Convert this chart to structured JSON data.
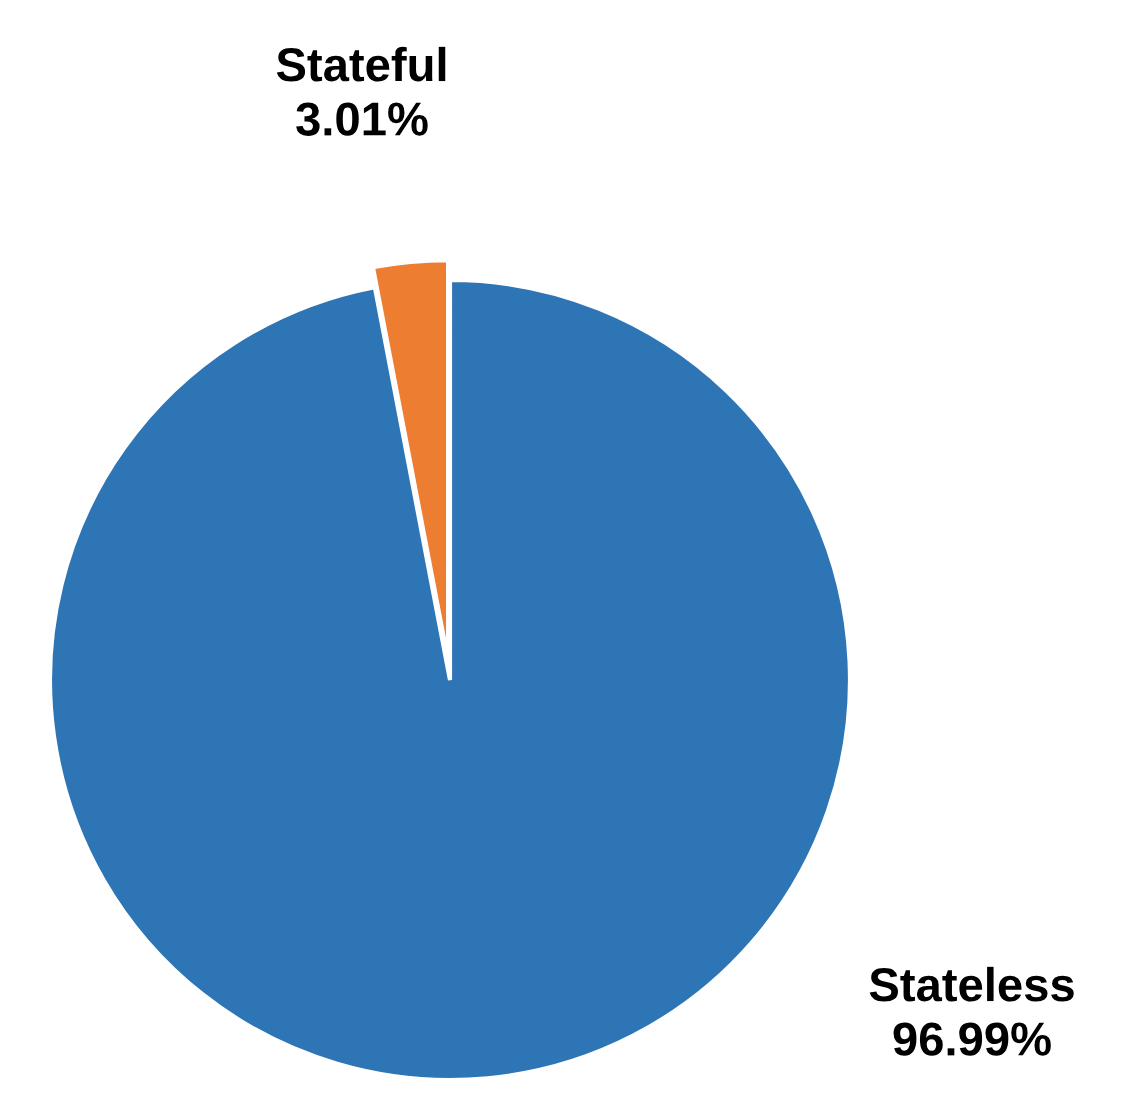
{
  "chart_data": {
    "type": "pie",
    "categories": [
      "Stateful",
      "Stateless"
    ],
    "values": [
      3.01,
      96.99
    ],
    "colors": [
      "#ed7d31",
      "#2e75b6"
    ],
    "value_labels": [
      "3.01%",
      "96.99%"
    ]
  }
}
